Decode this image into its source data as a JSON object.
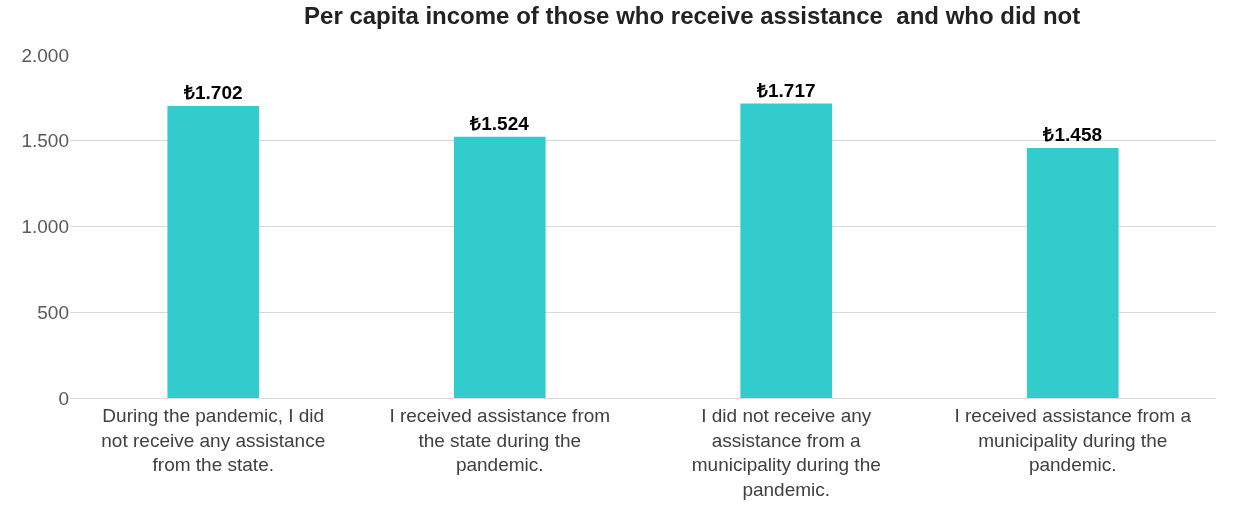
{
  "chart_data": {
    "type": "bar",
    "title": "Per capita income of those who receive assistance  and who did not",
    "categories": [
      "During the pandemic, I did not receive any assistance from the state.",
      "I received assistance from the state during the pandemic.",
      "I did not receive any assistance from a municipality during the pandemic.",
      "I received assistance from a municipality during the pandemic."
    ],
    "values": [
      1702,
      1524,
      1717,
      1458
    ],
    "value_labels": [
      "₺1.702",
      "₺1.524",
      "₺1.717",
      "₺1.458"
    ],
    "color": "#33cccc",
    "ylim": [
      0,
      2000
    ],
    "yticks": [
      {
        "value": 0,
        "label": "0"
      },
      {
        "value": 500,
        "label": "500"
      },
      {
        "value": 1000,
        "label": "1.000"
      },
      {
        "value": 1500,
        "label": "1.500"
      },
      {
        "value": 2000,
        "label": "2.000"
      }
    ],
    "grid": "y"
  }
}
